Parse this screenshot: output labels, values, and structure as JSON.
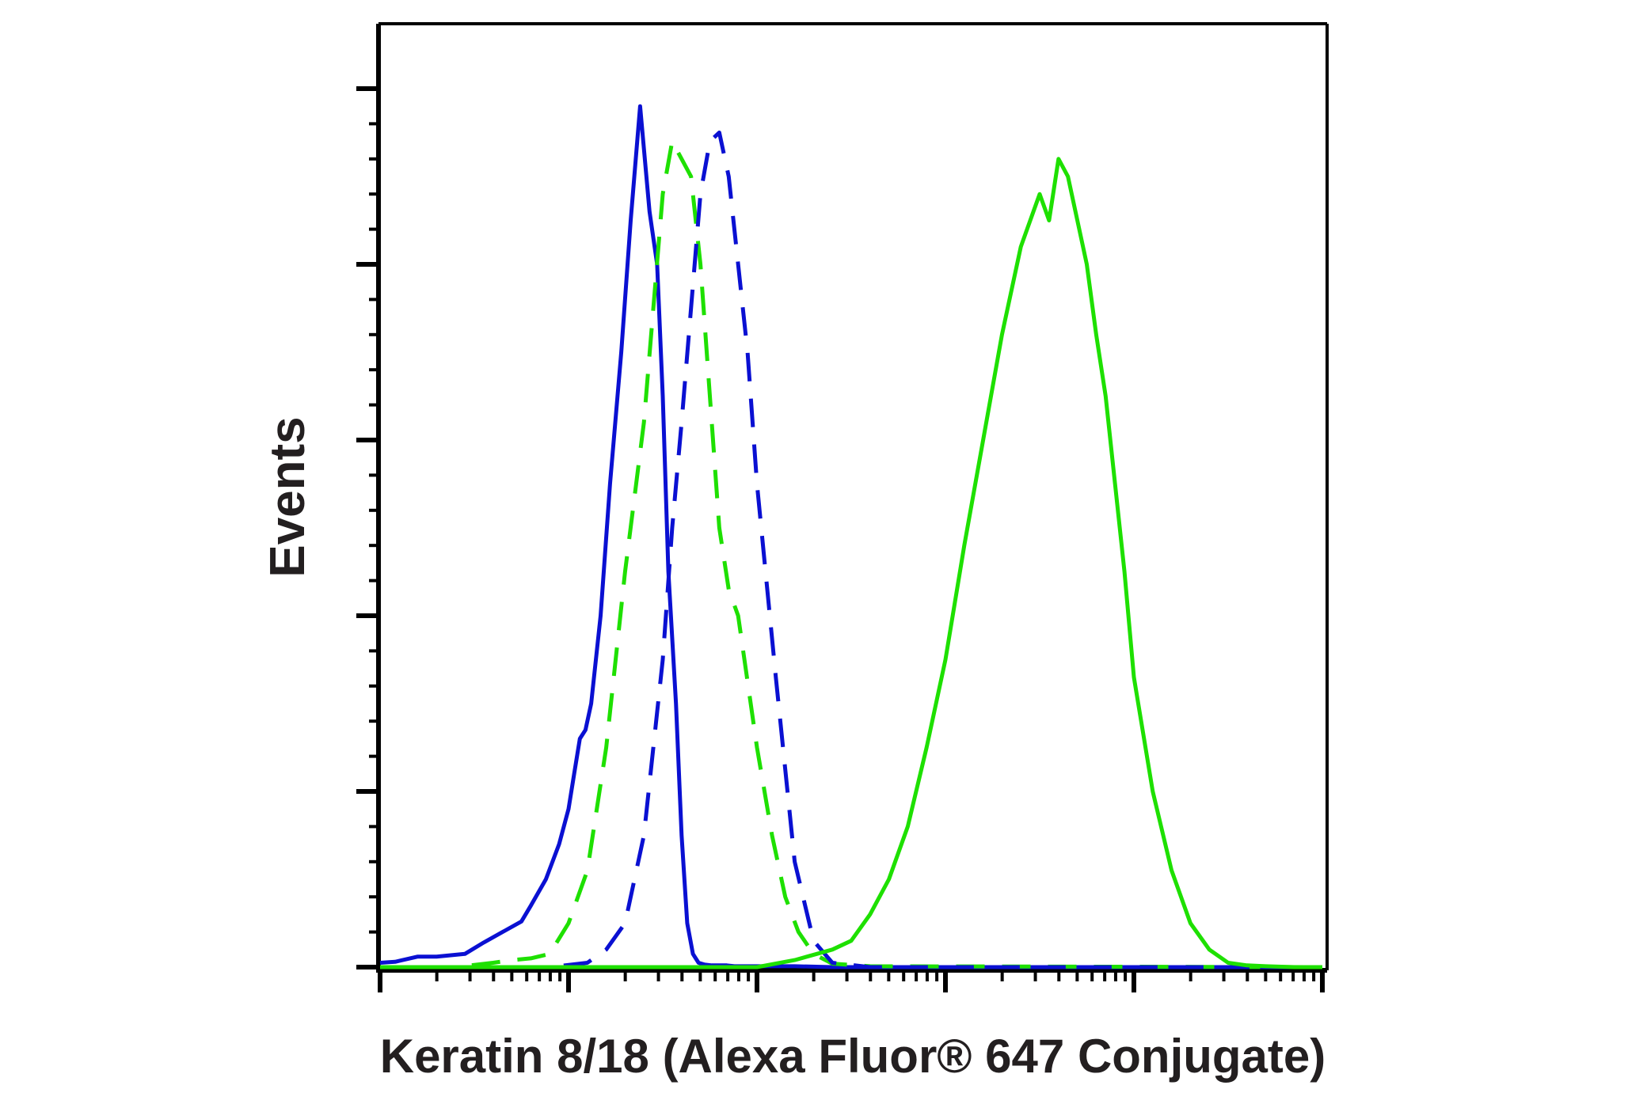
{
  "chart_data": {
    "type": "line",
    "title": "",
    "xlabel": "Keratin 8/18 (Alexa Fluor® 647 Conjugate)",
    "ylabel": "Events",
    "x_scale": "log",
    "xlim": [
      0,
      5
    ],
    "ylim": [
      0,
      100
    ],
    "grid": false,
    "legend": "none",
    "x_tick_labels": [],
    "y_tick_labels": [],
    "y_major_ticks": [
      0,
      20,
      40,
      60,
      80,
      100
    ],
    "colors": {
      "blue": "#0a10d2",
      "green": "#1ee000"
    },
    "series": [
      {
        "name": "blue-solid",
        "color": "blue",
        "dash": false,
        "x": [
          0.0,
          0.08,
          0.2,
          0.3,
          0.45,
          0.55,
          0.65,
          0.75,
          0.8,
          0.88,
          0.95,
          1.0,
          1.03,
          1.06,
          1.09,
          1.12,
          1.17,
          1.22,
          1.28,
          1.33,
          1.38,
          1.43,
          1.47,
          1.5,
          1.53,
          1.57,
          1.6,
          1.63,
          1.66,
          1.69,
          1.72,
          1.76,
          1.8,
          1.84,
          1.88,
          1.92,
          2.0,
          2.1,
          2.2,
          2.4,
          5.0
        ],
        "y": [
          0.5,
          0.6,
          1.2,
          1.2,
          1.5,
          2.8,
          4.0,
          5.2,
          7.0,
          10.0,
          14.0,
          18.0,
          22.0,
          26.0,
          27.0,
          30.0,
          40.0,
          55.0,
          70.0,
          85.0,
          98.0,
          86.0,
          80.0,
          65.0,
          45.0,
          30.0,
          15.0,
          5.0,
          1.5,
          0.5,
          0.3,
          0.2,
          0.2,
          0.2,
          0.1,
          0.1,
          0.1,
          0.1,
          0.1,
          0.0,
          0.0
        ]
      },
      {
        "name": "green-dashed",
        "color": "green",
        "dash": true,
        "x": [
          0.0,
          0.2,
          0.4,
          0.6,
          0.7,
          0.8,
          0.9,
          1.0,
          1.1,
          1.2,
          1.3,
          1.4,
          1.45,
          1.5,
          1.55,
          1.6,
          1.65,
          1.7,
          1.75,
          1.8,
          1.85,
          1.9,
          2.0,
          2.08,
          2.15,
          2.22,
          2.3,
          2.4,
          2.6,
          5.0
        ],
        "y": [
          0.0,
          0.0,
          0.0,
          0.5,
          0.8,
          1.0,
          1.5,
          5.0,
          11.0,
          25.0,
          45.0,
          62.0,
          75.0,
          88.0,
          94.0,
          92.0,
          90.0,
          80.0,
          65.0,
          50.0,
          43.0,
          40.0,
          25.0,
          15.0,
          8.0,
          4.0,
          1.5,
          0.4,
          0.1,
          0.0
        ]
      },
      {
        "name": "blue-dashed",
        "color": "blue",
        "dash": true,
        "x": [
          0.0,
          0.5,
          0.9,
          1.1,
          1.2,
          1.3,
          1.4,
          1.5,
          1.55,
          1.6,
          1.65,
          1.7,
          1.75,
          1.8,
          1.85,
          1.9,
          1.95,
          2.0,
          2.1,
          2.2,
          2.3,
          2.4,
          2.6,
          5.0
        ],
        "y": [
          0.0,
          0.0,
          0.0,
          0.5,
          2.0,
          5.0,
          15.0,
          35.0,
          50.0,
          62.0,
          75.0,
          88.0,
          94.0,
          95.0,
          90.0,
          80.0,
          70.0,
          55.0,
          33.0,
          12.0,
          3.0,
          0.5,
          0.0,
          0.0
        ]
      },
      {
        "name": "green-solid",
        "color": "green",
        "dash": false,
        "x": [
          0.0,
          0.5,
          1.0,
          1.5,
          2.0,
          2.2,
          2.4,
          2.5,
          2.6,
          2.7,
          2.8,
          2.9,
          3.0,
          3.1,
          3.2,
          3.3,
          3.4,
          3.5,
          3.55,
          3.6,
          3.65,
          3.7,
          3.75,
          3.8,
          3.85,
          3.9,
          3.95,
          4.0,
          4.1,
          4.2,
          4.3,
          4.4,
          4.5,
          4.6,
          4.7,
          4.85,
          5.0
        ],
        "y": [
          0.0,
          0.0,
          0.0,
          0.0,
          0.0,
          0.8,
          2.0,
          3.0,
          6.0,
          10.0,
          16.0,
          25.0,
          35.0,
          48.0,
          60.0,
          72.0,
          82.0,
          88.0,
          85.0,
          92.0,
          90.0,
          85.0,
          80.0,
          72.0,
          65.0,
          55.0,
          45.0,
          33.0,
          20.0,
          11.0,
          5.0,
          2.0,
          0.5,
          0.2,
          0.1,
          0.0,
          0.0
        ]
      }
    ]
  }
}
